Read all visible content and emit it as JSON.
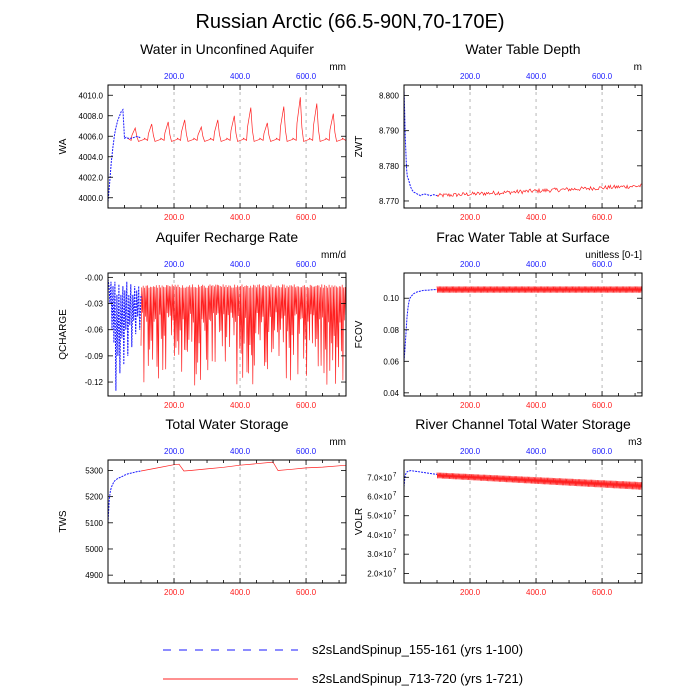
{
  "figure": {
    "title": "Russian Arctic (66.5-90N,70-170E)",
    "series": [
      {
        "name": "s2sLandSpinup_155-161 (yrs 1-100)",
        "color": "#1a1aff",
        "dash": "8,8",
        "years": 100
      },
      {
        "name": "s2sLandSpinup_713-720 (yrs 1-721)",
        "color": "#ff2020",
        "dash": "",
        "years": 721
      }
    ],
    "top_axis_color": "#1a1aff",
    "bottom_axis_color": "#ff2020"
  },
  "chart_data": [
    {
      "type": "line",
      "id": "wa",
      "title": "Water in Unconfined Aquifer",
      "units": "mm",
      "ylabel": "WA",
      "xlim": [
        0,
        721
      ],
      "ylim": [
        3999,
        4011
      ],
      "yticks": [
        4000,
        4002,
        4004,
        4006,
        4008,
        4010
      ],
      "yticklabels": [
        "4000.0",
        "4002.0",
        "4004.0",
        "4006.0",
        "4008.0",
        "4010.0"
      ],
      "top_xticks": [
        200,
        400,
        600
      ],
      "top_xticklabels": [
        "200.0",
        "400.0",
        "600.0"
      ],
      "bottom_xticks": [
        200,
        400,
        600
      ],
      "bottom_xticklabels": [
        "200.0",
        "400.0",
        "600.0"
      ],
      "show_bottom_labels": true,
      "blue_points": [
        [
          0,
          3999.6
        ],
        [
          5,
          4001.5
        ],
        [
          10,
          4003.5
        ],
        [
          15,
          4005
        ],
        [
          20,
          4006.2
        ],
        [
          25,
          4007
        ],
        [
          30,
          4007.6
        ],
        [
          35,
          4008
        ],
        [
          40,
          4008.4
        ],
        [
          45,
          4008.6
        ],
        [
          50,
          4005.8
        ],
        [
          55,
          4005.9
        ],
        [
          60,
          4005.8
        ],
        [
          70,
          4005.8
        ],
        [
          80,
          4005.9
        ],
        [
          90,
          4006
        ],
        [
          100,
          4005.8
        ]
      ],
      "red_pattern": "sawtooth",
      "red_base": 4005.6,
      "red_cycle": 50,
      "red_peaks": [
        4006.8,
        4007.2,
        4007.4,
        4007.6,
        4006.9,
        4007.6,
        4008.0,
        4008.8,
        4007.3,
        4008.9,
        4009.8,
        4009.2,
        4008.2,
        4008.4
      ]
    },
    {
      "type": "line",
      "id": "zwt",
      "title": "Water Table Depth",
      "units": "m",
      "ylabel": "ZWT",
      "xlim": [
        0,
        721
      ],
      "ylim": [
        8.768,
        8.803
      ],
      "yticks": [
        8.77,
        8.78,
        8.79,
        8.8
      ],
      "yticklabels": [
        "8.770",
        "8.780",
        "8.790",
        "8.800"
      ],
      "top_xticks": [
        200,
        400,
        600
      ],
      "top_xticklabels": [
        "200.0",
        "400.0",
        "600.0"
      ],
      "bottom_xticks": [
        200,
        400,
        600
      ],
      "bottom_xticklabels": [
        "200.0",
        "400.0",
        "600.0"
      ],
      "show_bottom_labels": true,
      "blue_points": [
        [
          0,
          8.802
        ],
        [
          2,
          8.795
        ],
        [
          4,
          8.788
        ],
        [
          6,
          8.783
        ],
        [
          8,
          8.779
        ],
        [
          10,
          8.777
        ],
        [
          14,
          8.776
        ],
        [
          20,
          8.774
        ],
        [
          25,
          8.773
        ],
        [
          30,
          8.7725
        ],
        [
          40,
          8.772
        ],
        [
          50,
          8.7715
        ],
        [
          60,
          8.772
        ],
        [
          70,
          8.7718
        ],
        [
          80,
          8.7715
        ],
        [
          90,
          8.7718
        ],
        [
          100,
          8.7715
        ]
      ],
      "red_pattern": "noisy",
      "red_start": 8.7715,
      "red_end": 8.7743,
      "red_amp": 0.0012
    },
    {
      "type": "line",
      "id": "qcharge",
      "title": "Aquifer Recharge Rate",
      "units": "mm/d",
      "ylabel": "QCHARGE",
      "xlim": [
        0,
        721
      ],
      "ylim": [
        -0.136,
        0.005
      ],
      "yticks": [
        0,
        -0.03,
        -0.06,
        -0.09,
        -0.12
      ],
      "yticklabels": [
        "-0.00",
        "-0.03",
        "-0.06",
        "-0.09",
        "-0.12"
      ],
      "top_xticks": [
        200,
        400,
        600
      ],
      "top_xticklabels": [
        "200.0",
        "400.0",
        "600.0"
      ],
      "bottom_xticks": [
        200,
        400,
        600
      ],
      "bottom_xticklabels": [
        "200.0",
        "400.0",
        "600.0"
      ],
      "show_bottom_labels": true,
      "blue_points": [
        [
          0,
          -0.002
        ],
        [
          3,
          -0.01
        ],
        [
          6,
          -0.03
        ],
        [
          9,
          -0.005
        ],
        [
          12,
          -0.06
        ],
        [
          15,
          -0.01
        ],
        [
          18,
          -0.075
        ],
        [
          21,
          -0.005
        ],
        [
          24,
          -0.13
        ],
        [
          27,
          -0.02
        ],
        [
          30,
          -0.09
        ],
        [
          33,
          -0.008
        ],
        [
          36,
          -0.11
        ],
        [
          39,
          -0.02
        ],
        [
          42,
          -0.07
        ],
        [
          45,
          -0.01
        ],
        [
          48,
          -0.1
        ],
        [
          51,
          -0.015
        ],
        [
          54,
          -0.06
        ],
        [
          57,
          -0.005
        ],
        [
          60,
          -0.09
        ],
        [
          63,
          -0.02
        ],
        [
          66,
          -0.055
        ],
        [
          69,
          -0.008
        ],
        [
          72,
          -0.08
        ],
        [
          75,
          -0.02
        ],
        [
          78,
          -0.05
        ],
        [
          81,
          -0.01
        ],
        [
          84,
          -0.065
        ],
        [
          87,
          -0.015
        ],
        [
          90,
          -0.045
        ],
        [
          93,
          -0.01
        ],
        [
          96,
          -0.06
        ],
        [
          100,
          -0.02
        ]
      ],
      "red_pattern": "spiky",
      "red_upper": -0.008,
      "red_band_low": -0.04,
      "red_spike_min": -0.06,
      "red_spike_max": -0.126
    },
    {
      "type": "line",
      "id": "fcov",
      "title": "Frac Water Table at Surface",
      "units": "unitless [0-1]",
      "ylabel": "FCOV",
      "xlim": [
        0,
        721
      ],
      "ylim": [
        0.038,
        0.116
      ],
      "yticks": [
        0.04,
        0.06,
        0.08,
        0.1
      ],
      "yticklabels": [
        "0.04",
        "0.06",
        "0.08",
        "0.10"
      ],
      "top_xticks": [
        200,
        400,
        600
      ],
      "top_xticklabels": [
        "200.0",
        "400.0",
        "600.0"
      ],
      "bottom_xticks": [
        200,
        400,
        600
      ],
      "bottom_xticklabels": [
        "200.0",
        "400.0",
        "600.0"
      ],
      "show_bottom_labels": true,
      "blue_points": [
        [
          0,
          0.06
        ],
        [
          3,
          0.068
        ],
        [
          6,
          0.078
        ],
        [
          9,
          0.088
        ],
        [
          12,
          0.094
        ],
        [
          15,
          0.098
        ],
        [
          18,
          0.1
        ],
        [
          21,
          0.101
        ],
        [
          25,
          0.102
        ],
        [
          30,
          0.103
        ],
        [
          35,
          0.1035
        ],
        [
          40,
          0.104
        ],
        [
          50,
          0.1045
        ],
        [
          60,
          0.105
        ],
        [
          70,
          0.105
        ],
        [
          80,
          0.1053
        ],
        [
          90,
          0.1055
        ],
        [
          100,
          0.1055
        ]
      ],
      "red_pattern": "band",
      "red_low": 0.1035,
      "red_high": 0.1075
    },
    {
      "type": "line",
      "id": "tws",
      "title": "Total Water Storage",
      "units": "mm",
      "ylabel": "TWS",
      "xlim": [
        0,
        721
      ],
      "ylim": [
        4870,
        5340
      ],
      "yticks": [
        4900,
        5000,
        5100,
        5200,
        5300
      ],
      "yticklabels": [
        "4900",
        "5000",
        "5100",
        "5200",
        "5300"
      ],
      "top_xticks": [
        200,
        400,
        600
      ],
      "top_xticklabels": [
        "200.0",
        "400.0",
        "600.0"
      ],
      "bottom_xticks": [
        200,
        400,
        600
      ],
      "bottom_xticklabels": [
        "200.0",
        "400.0",
        "600.0"
      ],
      "show_bottom_labels": true,
      "blue_points": [
        [
          0,
          5100
        ],
        [
          2,
          5150
        ],
        [
          4,
          5190
        ],
        [
          7,
          5220
        ],
        [
          10,
          5235
        ],
        [
          15,
          5250
        ],
        [
          20,
          5260
        ],
        [
          30,
          5270
        ],
        [
          40,
          5275
        ],
        [
          50,
          5282
        ],
        [
          60,
          5287
        ],
        [
          70,
          5290
        ],
        [
          80,
          5293
        ],
        [
          90,
          5296
        ],
        [
          100,
          5298
        ]
      ],
      "red_points": [
        [
          100,
          5298
        ],
        [
          150,
          5310
        ],
        [
          200,
          5322
        ],
        [
          215,
          5324
        ],
        [
          230,
          5298
        ],
        [
          250,
          5300
        ],
        [
          300,
          5306
        ],
        [
          350,
          5312
        ],
        [
          400,
          5320
        ],
        [
          450,
          5326
        ],
        [
          500,
          5332
        ],
        [
          515,
          5300
        ],
        [
          560,
          5305
        ],
        [
          600,
          5310
        ],
        [
          650,
          5313
        ],
        [
          700,
          5318
        ],
        [
          721,
          5320
        ]
      ]
    },
    {
      "type": "line",
      "id": "volr",
      "title": "River Channel Total Water Storage",
      "units": "m3",
      "ylabel": "VOLR",
      "xlim": [
        0,
        721
      ],
      "ylim": [
        15000000.0,
        79000000.0
      ],
      "yticks": [
        20000000.0,
        30000000.0,
        40000000.0,
        50000000.0,
        60000000.0,
        70000000.0
      ],
      "yticklabels": [
        "2.0×10",
        "3.0×10",
        "4.0×10",
        "5.0×10",
        "6.0×10",
        "7.0×10"
      ],
      "ytick_exponent": "7",
      "top_xticks": [
        200,
        400,
        600
      ],
      "top_xticklabels": [
        "200.0",
        "400.0",
        "600.0"
      ],
      "bottom_xticks": [
        200,
        400,
        600
      ],
      "bottom_xticklabels": [
        "200.0",
        "400.0",
        "600.0"
      ],
      "show_bottom_labels": true,
      "blue_points": [
        [
          0,
          65000000.0
        ],
        [
          2,
          69000000.0
        ],
        [
          4,
          71000000.0
        ],
        [
          6,
          72000000.0
        ],
        [
          10,
          73000000.0
        ],
        [
          20,
          73500000.0
        ],
        [
          40,
          73000000.0
        ],
        [
          60,
          72500000.0
        ],
        [
          80,
          72000000.0
        ],
        [
          100,
          71500000.0
        ]
      ],
      "red_pattern": "decline_band",
      "red_start_high": 72500000.0,
      "red_end_high": 67500000.0,
      "red_start_low": 69500000.0,
      "red_end_low": 63500000.0
    }
  ]
}
